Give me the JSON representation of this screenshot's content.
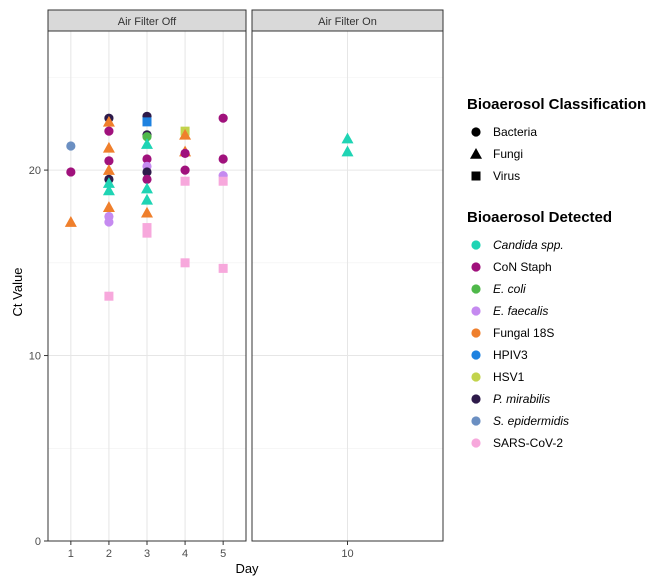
{
  "chart_data": {
    "type": "scatter",
    "ylabel": "Ct Value",
    "xlabel": "Day",
    "ylim": [
      0,
      27.5
    ],
    "yticks": [
      0,
      10,
      20
    ],
    "panels": [
      {
        "title": "Air Filter Off",
        "xticks": [
          "1",
          "2",
          "3",
          "4",
          "5"
        ],
        "xlim": [
          0.4,
          5.6
        ]
      },
      {
        "title": "Air Filter On",
        "xticks": [
          "10"
        ],
        "xlim": [
          9.4,
          10.6
        ]
      }
    ],
    "shape_legend": {
      "title": "Bioaerosol Classification",
      "items": [
        {
          "label": "Bacteria",
          "shape": "circle"
        },
        {
          "label": "Fungi",
          "shape": "triangle"
        },
        {
          "label": "Virus",
          "shape": "square"
        }
      ]
    },
    "color_legend": {
      "title": "Bioaerosol Detected",
      "items": [
        {
          "label": "Candida spp.",
          "color": "#1fd4b4",
          "italic": true
        },
        {
          "label": "CoN Staph",
          "color": "#a0117c",
          "italic": false
        },
        {
          "label": "E. coli",
          "color": "#4fb84a",
          "italic": true
        },
        {
          "label": "E. faecalis",
          "color": "#c58af0",
          "italic": true
        },
        {
          "label": "Fungal 18S",
          "color": "#ef7f2c",
          "italic": false
        },
        {
          "label": "HPIV3",
          "color": "#1e82e0",
          "italic": false
        },
        {
          "label": "HSV1",
          "color": "#c2d34c",
          "italic": false
        },
        {
          "label": "P. mirabilis",
          "color": "#2d1a4a",
          "italic": true
        },
        {
          "label": "S. epidermidis",
          "color": "#6b8fc2",
          "italic": true
        },
        {
          "label": "SARS-CoV-2",
          "color": "#f7a8dc",
          "italic": false
        }
      ]
    },
    "points": [
      {
        "panel": 0,
        "x": 1,
        "y": 21.3,
        "organism": "S. epidermidis",
        "shape": "circle"
      },
      {
        "panel": 0,
        "x": 1,
        "y": 19.9,
        "organism": "CoN Staph",
        "shape": "circle"
      },
      {
        "panel": 0,
        "x": 1,
        "y": 17.2,
        "organism": "Fungal 18S",
        "shape": "triangle"
      },
      {
        "panel": 0,
        "x": 2,
        "y": 22.8,
        "organism": "P. mirabilis",
        "shape": "circle"
      },
      {
        "panel": 0,
        "x": 2,
        "y": 22.6,
        "organism": "Fungal 18S",
        "shape": "triangle"
      },
      {
        "panel": 0,
        "x": 2,
        "y": 22.1,
        "organism": "CoN Staph",
        "shape": "circle"
      },
      {
        "panel": 0,
        "x": 2,
        "y": 21.2,
        "organism": "Fungal 18S",
        "shape": "triangle"
      },
      {
        "panel": 0,
        "x": 2,
        "y": 20.5,
        "organism": "CoN Staph",
        "shape": "circle"
      },
      {
        "panel": 0,
        "x": 2,
        "y": 20.0,
        "organism": "Fungal 18S",
        "shape": "triangle"
      },
      {
        "panel": 0,
        "x": 2,
        "y": 19.5,
        "organism": "P. mirabilis",
        "shape": "circle"
      },
      {
        "panel": 0,
        "x": 2,
        "y": 19.3,
        "organism": "Candida spp.",
        "shape": "triangle"
      },
      {
        "panel": 0,
        "x": 2,
        "y": 18.9,
        "organism": "Candida spp.",
        "shape": "triangle"
      },
      {
        "panel": 0,
        "x": 2,
        "y": 18.0,
        "organism": "Fungal 18S",
        "shape": "triangle"
      },
      {
        "panel": 0,
        "x": 2,
        "y": 17.5,
        "organism": "E. faecalis",
        "shape": "circle"
      },
      {
        "panel": 0,
        "x": 2,
        "y": 17.2,
        "organism": "E. faecalis",
        "shape": "circle"
      },
      {
        "panel": 0,
        "x": 2,
        "y": 13.2,
        "organism": "SARS-CoV-2",
        "shape": "square"
      },
      {
        "panel": 0,
        "x": 3,
        "y": 22.9,
        "organism": "P. mirabilis",
        "shape": "circle"
      },
      {
        "panel": 0,
        "x": 3,
        "y": 22.6,
        "organism": "HPIV3",
        "shape": "square"
      },
      {
        "panel": 0,
        "x": 3,
        "y": 21.9,
        "organism": "P. mirabilis",
        "shape": "circle"
      },
      {
        "panel": 0,
        "x": 3,
        "y": 21.8,
        "organism": "E. coli",
        "shape": "circle"
      },
      {
        "panel": 0,
        "x": 3,
        "y": 21.4,
        "organism": "Candida spp.",
        "shape": "triangle"
      },
      {
        "panel": 0,
        "x": 3,
        "y": 20.6,
        "organism": "CoN Staph",
        "shape": "circle"
      },
      {
        "panel": 0,
        "x": 3,
        "y": 20.2,
        "organism": "E. faecalis",
        "shape": "circle"
      },
      {
        "panel": 0,
        "x": 3,
        "y": 19.9,
        "organism": "P. mirabilis",
        "shape": "circle"
      },
      {
        "panel": 0,
        "x": 3,
        "y": 19.5,
        "organism": "CoN Staph",
        "shape": "circle"
      },
      {
        "panel": 0,
        "x": 3,
        "y": 19.0,
        "organism": "Candida spp.",
        "shape": "triangle"
      },
      {
        "panel": 0,
        "x": 3,
        "y": 18.4,
        "organism": "Candida spp.",
        "shape": "triangle"
      },
      {
        "panel": 0,
        "x": 3,
        "y": 17.7,
        "organism": "Fungal 18S",
        "shape": "triangle"
      },
      {
        "panel": 0,
        "x": 3,
        "y": 16.9,
        "organism": "SARS-CoV-2",
        "shape": "square"
      },
      {
        "panel": 0,
        "x": 3,
        "y": 16.6,
        "organism": "SARS-CoV-2",
        "shape": "square"
      },
      {
        "panel": 0,
        "x": 4,
        "y": 22.1,
        "organism": "HSV1",
        "shape": "square"
      },
      {
        "panel": 0,
        "x": 4,
        "y": 21.9,
        "organism": "Fungal 18S",
        "shape": "triangle"
      },
      {
        "panel": 0,
        "x": 4,
        "y": 21.0,
        "organism": "Fungal 18S",
        "shape": "triangle"
      },
      {
        "panel": 0,
        "x": 4,
        "y": 20.9,
        "organism": "CoN Staph",
        "shape": "circle"
      },
      {
        "panel": 0,
        "x": 4,
        "y": 20.0,
        "organism": "CoN Staph",
        "shape": "circle"
      },
      {
        "panel": 0,
        "x": 4,
        "y": 19.4,
        "organism": "SARS-CoV-2",
        "shape": "square"
      },
      {
        "panel": 0,
        "x": 4,
        "y": 15.0,
        "organism": "SARS-CoV-2",
        "shape": "square"
      },
      {
        "panel": 0,
        "x": 5,
        "y": 22.8,
        "organism": "CoN Staph",
        "shape": "circle"
      },
      {
        "panel": 0,
        "x": 5,
        "y": 20.6,
        "organism": "CoN Staph",
        "shape": "circle"
      },
      {
        "panel": 0,
        "x": 5,
        "y": 19.7,
        "organism": "E. faecalis",
        "shape": "circle"
      },
      {
        "panel": 0,
        "x": 5,
        "y": 19.4,
        "organism": "SARS-CoV-2",
        "shape": "square"
      },
      {
        "panel": 0,
        "x": 5,
        "y": 14.7,
        "organism": "SARS-CoV-2",
        "shape": "square"
      },
      {
        "panel": 1,
        "x": 10,
        "y": 21.7,
        "organism": "Candida spp.",
        "shape": "triangle"
      },
      {
        "panel": 1,
        "x": 10,
        "y": 21.0,
        "organism": "Candida spp.",
        "shape": "triangle"
      }
    ]
  }
}
